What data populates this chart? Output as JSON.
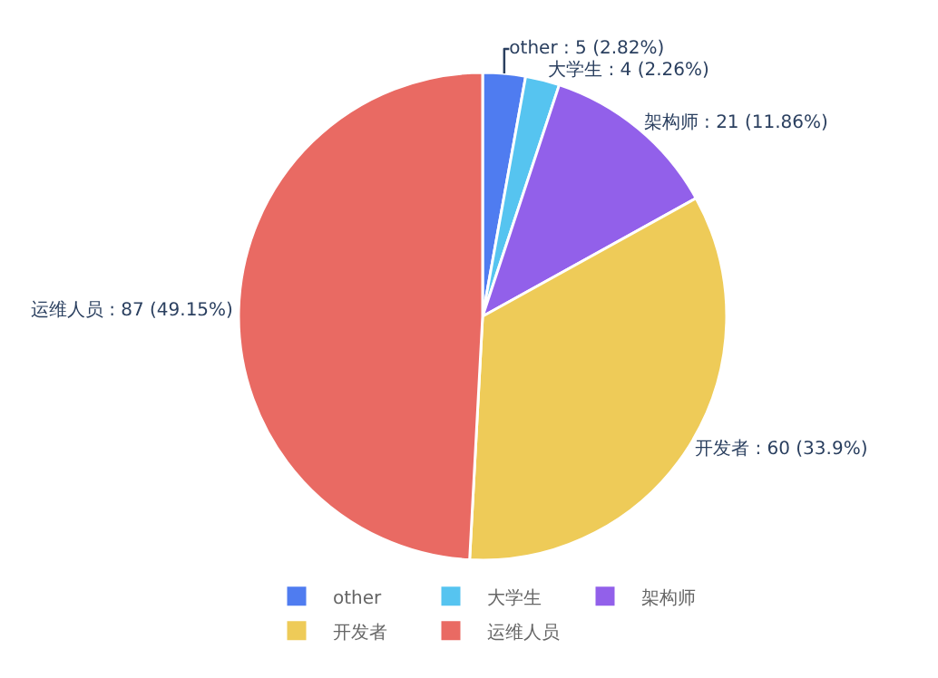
{
  "chart_data": {
    "type": "pie",
    "categories": [
      "other",
      "大学生",
      "架构师",
      "开发者",
      "运维人员"
    ],
    "values": [
      5,
      4,
      21,
      60,
      87
    ],
    "colors": [
      "#4f7cf0",
      "#56c4f0",
      "#9260ea",
      "#eecb58",
      "#e96a63"
    ],
    "value_labels": [
      "other : 5 (2.82%)",
      "大学生 : 4 (2.26%)",
      "架构师 : 21 (11.86%)",
      "开发者 : 60 (33.9%)",
      "运维人员 : 87 (49.15%)"
    ],
    "legend": "bottom"
  }
}
